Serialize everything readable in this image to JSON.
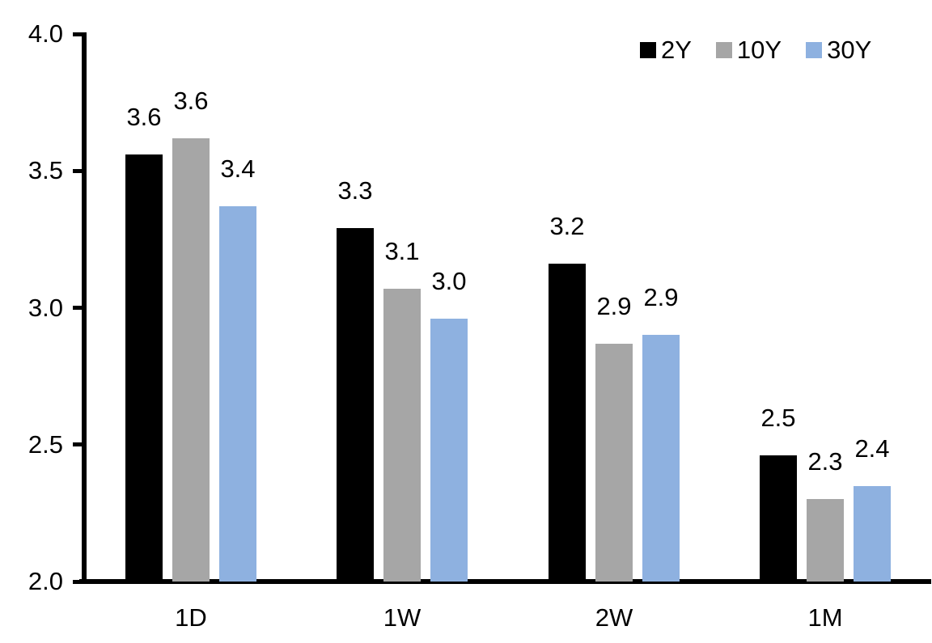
{
  "chart_data": {
    "type": "bar",
    "title": "",
    "xlabel": "",
    "ylabel": "",
    "categories": [
      "1D",
      "1W",
      "2W",
      "1M"
    ],
    "series": [
      {
        "name": "2Y",
        "color": "#000000",
        "values": [
          3.56,
          3.29,
          3.16,
          2.46
        ],
        "labels": [
          "3.6",
          "3.3",
          "3.2",
          "2.5"
        ]
      },
      {
        "name": "10Y",
        "color": "#A6A6A6",
        "values": [
          3.62,
          3.07,
          2.87,
          2.3
        ],
        "labels": [
          "3.6",
          "3.1",
          "2.9",
          "2.3"
        ]
      },
      {
        "name": "30Y",
        "color": "#8EB1E0",
        "values": [
          3.37,
          2.96,
          2.9,
          2.35
        ],
        "labels": [
          "3.4",
          "3.0",
          "2.9",
          "2.4"
        ]
      }
    ],
    "ylim": [
      2.0,
      4.0
    ],
    "yticks": [
      4.0,
      3.5,
      3.0,
      2.5,
      2.0
    ],
    "ytick_labels": [
      "4.0",
      "3.5",
      "3.0",
      "2.5",
      "2.0"
    ],
    "grid": false,
    "legend_position": "top-right",
    "axis_color": "#000000",
    "background_color": "#FFFFFF"
  }
}
